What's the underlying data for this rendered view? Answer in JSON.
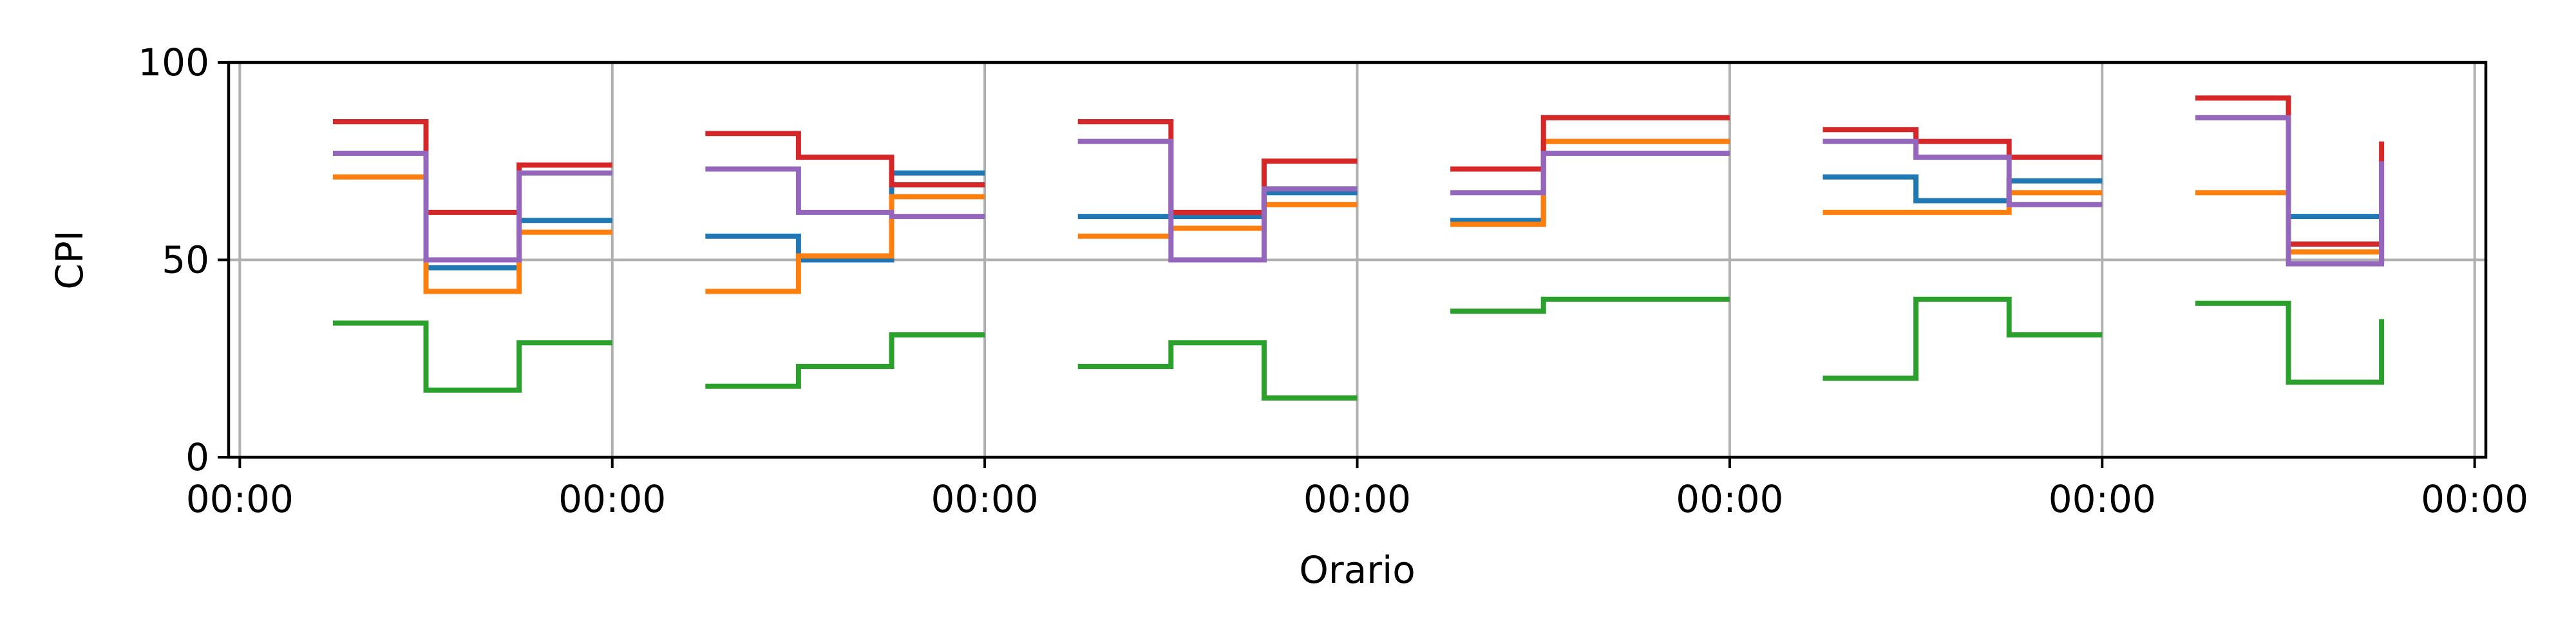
{
  "chart_data": {
    "type": "line",
    "step": "post",
    "xlabel": "Orario",
    "ylabel": "CPI",
    "ylim": [
      0,
      100
    ],
    "yticks": [
      0,
      50,
      100
    ],
    "xlim_days": [
      -0.03,
      6.03
    ],
    "xticks": [
      0,
      1,
      2,
      3,
      4,
      5,
      6
    ],
    "xtick_labels": [
      "00:00",
      "00:00",
      "00:00",
      "00:00",
      "00:00",
      "00:00",
      "00:00"
    ],
    "grid": true,
    "legend": "none",
    "series": [
      {
        "color": "#1f77b4",
        "segments": [
          {
            "x": [
              0.25,
              0.5,
              0.75,
              1.0
            ],
            "y": [
              null,
              48,
              60,
              60
            ]
          },
          {
            "x": [
              1.25,
              1.5,
              1.75,
              2.0
            ],
            "y": [
              56,
              50,
              72,
              72
            ]
          },
          {
            "x": [
              2.25,
              2.5,
              2.75,
              3.0
            ],
            "y": [
              61,
              61,
              67,
              67
            ]
          },
          {
            "x": [
              3.25,
              3.5,
              3.75,
              4.0
            ],
            "y": [
              60,
              80,
              80,
              80
            ]
          },
          {
            "x": [
              4.25,
              4.5,
              4.75,
              5.0
            ],
            "y": [
              71,
              65,
              70,
              70
            ]
          },
          {
            "x": [
              5.25,
              5.5,
              5.75,
              5.75
            ],
            "y": [
              null,
              61,
              61,
              49
            ]
          }
        ]
      },
      {
        "color": "#ff7f0e",
        "segments": [
          {
            "x": [
              0.25,
              0.5,
              0.75,
              1.0
            ],
            "y": [
              71,
              42,
              57,
              57
            ]
          },
          {
            "x": [
              1.25,
              1.5,
              1.75,
              2.0
            ],
            "y": [
              42,
              51,
              66,
              66
            ]
          },
          {
            "x": [
              2.25,
              2.5,
              2.75,
              3.0
            ],
            "y": [
              56,
              58,
              64,
              64
            ]
          },
          {
            "x": [
              3.25,
              3.5,
              3.75,
              4.0
            ],
            "y": [
              59,
              80,
              80,
              80
            ]
          },
          {
            "x": [
              4.25,
              4.5,
              4.75,
              5.0
            ],
            "y": [
              62,
              62,
              67,
              67
            ]
          },
          {
            "x": [
              5.25,
              5.5,
              5.75,
              5.75
            ],
            "y": [
              67,
              52,
              52,
              49
            ]
          }
        ]
      },
      {
        "color": "#2ca02c",
        "segments": [
          {
            "x": [
              0.25,
              0.5,
              0.75,
              1.0
            ],
            "y": [
              34,
              17,
              29,
              29
            ]
          },
          {
            "x": [
              1.25,
              1.5,
              1.75,
              2.0
            ],
            "y": [
              18,
              23,
              31,
              31
            ]
          },
          {
            "x": [
              2.25,
              2.5,
              2.75,
              3.0
            ],
            "y": [
              23,
              29,
              15,
              15
            ]
          },
          {
            "x": [
              3.25,
              3.5,
              3.75,
              4.0
            ],
            "y": [
              37,
              40,
              40,
              40
            ]
          },
          {
            "x": [
              4.25,
              4.5,
              4.75,
              5.0
            ],
            "y": [
              20,
              40,
              31,
              31
            ]
          },
          {
            "x": [
              5.25,
              5.5,
              5.75,
              5.75
            ],
            "y": [
              39,
              19,
              19,
              35
            ]
          }
        ]
      },
      {
        "color": "#d62728",
        "segments": [
          {
            "x": [
              0.25,
              0.5,
              0.75,
              1.0
            ],
            "y": [
              85,
              62,
              74,
              74
            ]
          },
          {
            "x": [
              1.25,
              1.5,
              1.75,
              2.0
            ],
            "y": [
              82,
              76,
              69,
              69
            ]
          },
          {
            "x": [
              2.25,
              2.5,
              2.75,
              3.0
            ],
            "y": [
              85,
              62,
              75,
              75
            ]
          },
          {
            "x": [
              3.25,
              3.5,
              3.75,
              4.0
            ],
            "y": [
              73,
              86,
              86,
              86
            ]
          },
          {
            "x": [
              4.25,
              4.5,
              4.75,
              5.0
            ],
            "y": [
              83,
              80,
              76,
              76
            ]
          },
          {
            "x": [
              5.25,
              5.5,
              5.75,
              5.75
            ],
            "y": [
              91,
              54,
              54,
              80
            ]
          }
        ]
      },
      {
        "color": "#9467bd",
        "segments": [
          {
            "x": [
              0.25,
              0.5,
              0.75,
              1.0
            ],
            "y": [
              77,
              50,
              72,
              72
            ]
          },
          {
            "x": [
              1.25,
              1.5,
              1.75,
              2.0
            ],
            "y": [
              73,
              62,
              61,
              61
            ]
          },
          {
            "x": [
              2.25,
              2.5,
              2.75,
              3.0
            ],
            "y": [
              80,
              50,
              68,
              68
            ]
          },
          {
            "x": [
              3.25,
              3.5,
              3.75,
              4.0
            ],
            "y": [
              67,
              77,
              77,
              77
            ]
          },
          {
            "x": [
              4.25,
              4.5,
              4.75,
              5.0
            ],
            "y": [
              80,
              76,
              64,
              64
            ]
          },
          {
            "x": [
              5.25,
              5.5,
              5.75,
              5.75
            ],
            "y": [
              86,
              49,
              49,
              75
            ]
          }
        ]
      }
    ]
  }
}
